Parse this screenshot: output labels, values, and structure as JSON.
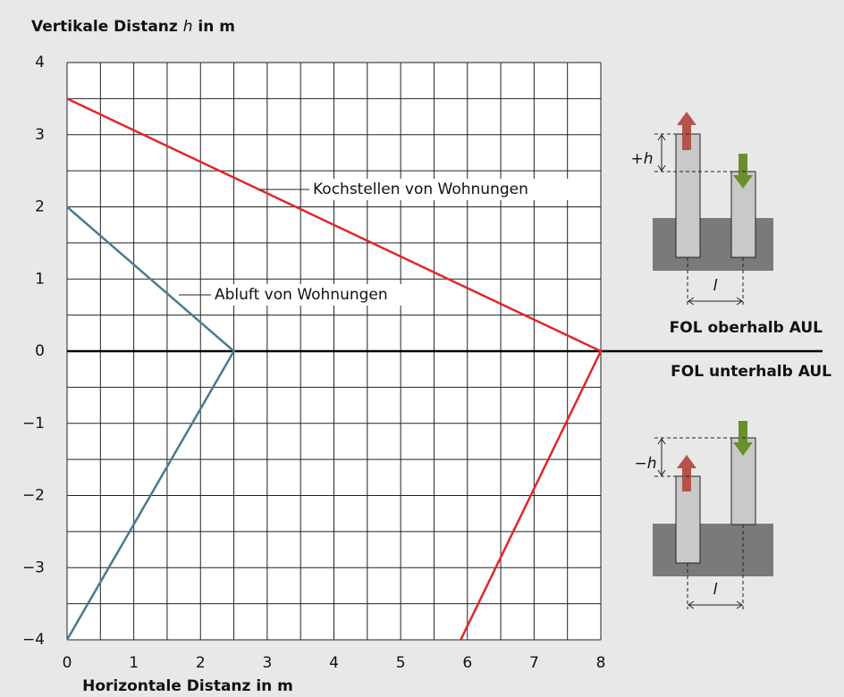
{
  "chart_data": {
    "type": "line",
    "ylabel": [
      "Vertikale Distanz ",
      "h",
      " in m"
    ],
    "xlabel": "Horizontale Distanz in m",
    "series": [
      {
        "name": "Kochstellen von Wohnungen",
        "color": "#e0262b",
        "x": [
          0,
          8,
          5.9
        ],
        "values": [
          3.5,
          0,
          -4
        ]
      },
      {
        "name": "Abluft von Wohnungen",
        "color": "#4a7a8c",
        "x": [
          0,
          2.5,
          0
        ],
        "values": [
          2,
          0,
          -4
        ]
      }
    ],
    "xlim": [
      0,
      8
    ],
    "ylim": [
      -4,
      4
    ],
    "xticks": [
      0,
      1,
      2,
      3,
      4,
      5,
      6,
      7,
      8
    ],
    "yticks": [
      {
        "value": -4,
        "label": "−4"
      },
      {
        "value": -3,
        "label": "−3"
      },
      {
        "value": -2,
        "label": "−2"
      },
      {
        "value": -1,
        "label": "−1"
      },
      0,
      1,
      2,
      3,
      4
    ],
    "xgrid": [
      0,
      0.5,
      1,
      1.5,
      2,
      2.5,
      3,
      3.5,
      4,
      4.5,
      5,
      5.5,
      6,
      6.5,
      7,
      7.5,
      8
    ],
    "ygrid": [
      -4,
      -3.5,
      -3,
      -2.5,
      -2,
      -1.5,
      -1,
      -0.5,
      0,
      0.5,
      1,
      1.5,
      2,
      2.5,
      3,
      3.5,
      4
    ],
    "grid": true,
    "annotations": [
      "FOL oberhalb AUL",
      "FOL unterhalb AUL",
      "+h",
      "−h",
      "l",
      "l"
    ]
  }
}
